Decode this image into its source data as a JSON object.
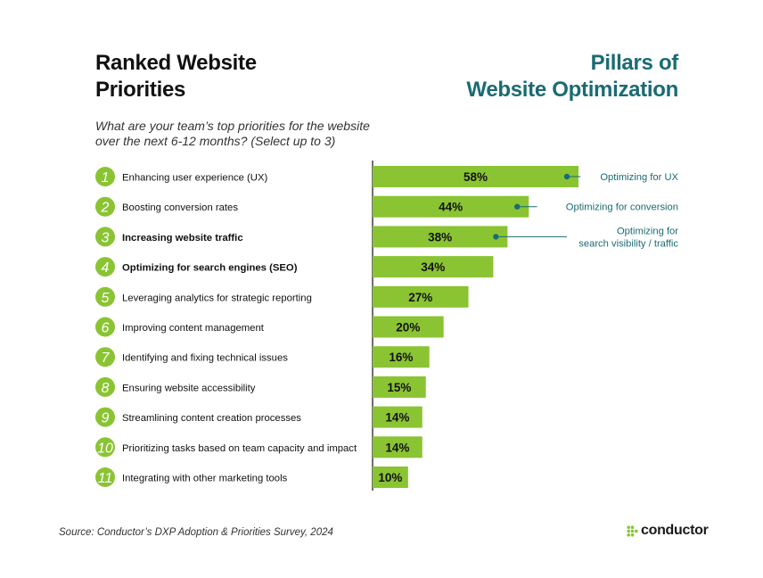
{
  "title_left": [
    "Ranked Website",
    "Priorities"
  ],
  "title_right": [
    "Pillars of",
    "Website Optimization"
  ],
  "subtitle": [
    "What are your team’s top priorities for the website",
    "over the next 6-12 months? (Select up to 3)"
  ],
  "source": "Source: Conductor’s DXP Adoption & Priorities Survey, 2024",
  "logo": "conductor",
  "colors": {
    "bar": "#8ac433",
    "rank_circle": "#8ac433",
    "accent": "#1a6b72",
    "text": "#111111"
  },
  "chart_data": {
    "type": "bar",
    "orientation": "horizontal",
    "categories": [
      "Enhancing user experience (UX)",
      "Boosting conversion rates",
      "Increasing website traffic",
      "Optimizing for search engines (SEO)",
      "Leveraging analytics for strategic reporting",
      "Improving content management",
      "Identifying and fixing technical issues",
      "Ensuring website accessibility",
      "Streamlining content creation processes",
      "Prioritizing tasks based on team capacity and impact",
      "Integrating with other marketing tools"
    ],
    "ranks": [
      "1",
      "2",
      "3",
      "4",
      "5",
      "6",
      "7",
      "8",
      "9",
      "10",
      "11"
    ],
    "bold_categories": [
      2,
      3
    ],
    "values": [
      58,
      44,
      38,
      34,
      27,
      20,
      16,
      15,
      14,
      14,
      10
    ],
    "value_labels": [
      "58%",
      "44%",
      "38%",
      "34%",
      "27%",
      "20%",
      "16%",
      "15%",
      "14%",
      "14%",
      "10%"
    ],
    "xlim": [
      0,
      58
    ],
    "annotations": [
      {
        "bar_index": 0,
        "lines": [
          "Optimizing for UX"
        ]
      },
      {
        "bar_index": 1,
        "lines": [
          "Optimizing for conversion"
        ]
      },
      {
        "bar_index": 2,
        "lines": [
          "Optimizing for",
          "search visibility / traffic"
        ]
      }
    ]
  }
}
